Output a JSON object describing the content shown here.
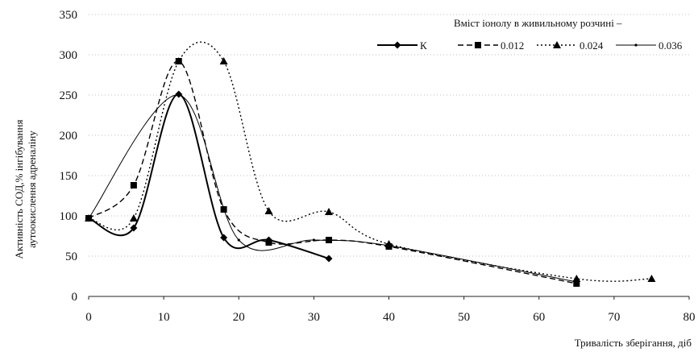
{
  "chart_data": {
    "type": "line",
    "title": "",
    "xlabel": "Тривалість зберігання, діб",
    "ylabel_lines": [
      "Активність СОД,% інгібування",
      "аутоокислення адреналіну"
    ],
    "xlim": [
      0,
      80
    ],
    "ylim": [
      0,
      350
    ],
    "xticks": [
      0,
      10,
      20,
      30,
      40,
      50,
      60,
      70,
      80
    ],
    "yticks": [
      0,
      50,
      100,
      150,
      200,
      250,
      300,
      350
    ],
    "grid": "horizontal dotted",
    "legend_title": "Вміст іонолу в живильному розчині –",
    "legend_placement": "top-right",
    "series": [
      {
        "name": "К",
        "marker": "diamond",
        "dash": "solid",
        "x": [
          0,
          6,
          12,
          18,
          24,
          32
        ],
        "y": [
          97,
          85,
          251,
          73,
          70,
          47
        ]
      },
      {
        "name": "0.012",
        "marker": "square",
        "dash": "dashed",
        "x": [
          0,
          6,
          12,
          18,
          24,
          32,
          40,
          65
        ],
        "y": [
          97,
          138,
          292,
          108,
          67,
          70,
          62,
          16
        ]
      },
      {
        "name": "0.024",
        "marker": "triangle",
        "dash": "dotted",
        "x": [
          0,
          6,
          12,
          18,
          24,
          32,
          40,
          65,
          75
        ],
        "y": [
          97,
          97,
          292,
          292,
          106,
          105,
          65,
          22,
          22
        ]
      },
      {
        "name": "0.036",
        "marker": "point",
        "dash": "thin",
        "x": [
          0,
          12,
          20,
          30,
          40,
          65
        ],
        "y": [
          97,
          250,
          70,
          70,
          63,
          18
        ]
      }
    ]
  }
}
